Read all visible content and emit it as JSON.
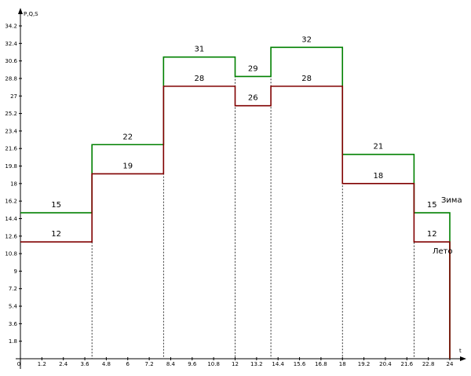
{
  "chart_data": {
    "type": "line",
    "step": true,
    "ylabel": "P,Q,S",
    "xlabel": "t",
    "xlim": [
      0,
      24
    ],
    "ylim": [
      0,
      34.2
    ],
    "grid": false,
    "xticks": [
      "0",
      "1.2",
      "2.4",
      "3.6",
      "4.8",
      "6",
      "7.2",
      "8.4",
      "9.6",
      "10.8",
      "12",
      "13.2",
      "14.4",
      "15.6",
      "16.8",
      "18",
      "19.2",
      "20.4",
      "21.6",
      "22.8",
      "24"
    ],
    "yticks": [
      "1.8",
      "3.6",
      "5.4",
      "7.2",
      "9",
      "10.8",
      "12.6",
      "14.4",
      "16.2",
      "18",
      "19.8",
      "21.6",
      "23.4",
      "25.2",
      "27",
      "28.8",
      "30.6",
      "32.4",
      "34.2"
    ],
    "intervals": [
      [
        0,
        4
      ],
      [
        4,
        8
      ],
      [
        8,
        12
      ],
      [
        12,
        14
      ],
      [
        14,
        18
      ],
      [
        18,
        22
      ],
      [
        22,
        24
      ]
    ],
    "series": [
      {
        "name": "Зима",
        "color": "#008000",
        "values": [
          15,
          22,
          31,
          29,
          32,
          21,
          15
        ]
      },
      {
        "name": "Лето",
        "color": "#800000",
        "values": [
          12,
          19,
          28,
          26,
          28,
          18,
          12
        ]
      }
    ]
  }
}
